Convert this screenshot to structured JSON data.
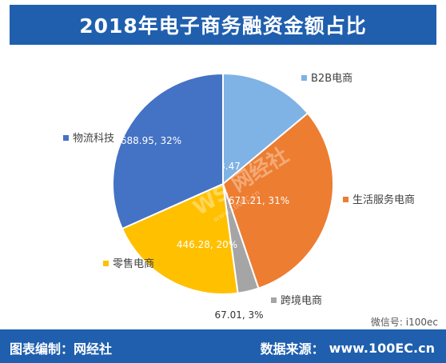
{
  "header": {
    "title": "2018年电子商务融资金额占比"
  },
  "chart_data": {
    "type": "pie",
    "title": "2018年电子商务融资金额占比",
    "slices": [
      {
        "name": "B2B电商",
        "value": 303.47,
        "percent": "14%",
        "label": "303.47, 14%",
        "color": "#7fb2e5"
      },
      {
        "name": "生活服务电商",
        "value": 671.21,
        "percent": "31%",
        "label": "671.21, 31%",
        "color": "#ed7d31"
      },
      {
        "name": "跨境电商",
        "value": 67.01,
        "percent": "3%",
        "label": "67.01, 3%",
        "color": "#a5a5a5"
      },
      {
        "name": "零售电商",
        "value": 446.28,
        "percent": "20%",
        "label": "446.28, 20%",
        "color": "#ffc000"
      },
      {
        "name": "物流科技",
        "value": 688.95,
        "percent": "32%",
        "label": "688.95, 32%",
        "color": "#4472c4"
      }
    ],
    "start_angle_deg": 0,
    "direction": "clockwise",
    "legend": "callout labels beside each slice"
  },
  "watermark": {
    "text": "WS 网经社",
    "url": "www.100EC.cn"
  },
  "footer": {
    "left": "图表编制：网经社",
    "source_label": "数据来源：",
    "source_value": "www.100EC.cn"
  },
  "wechat": {
    "text": "微信号: i100ec"
  }
}
